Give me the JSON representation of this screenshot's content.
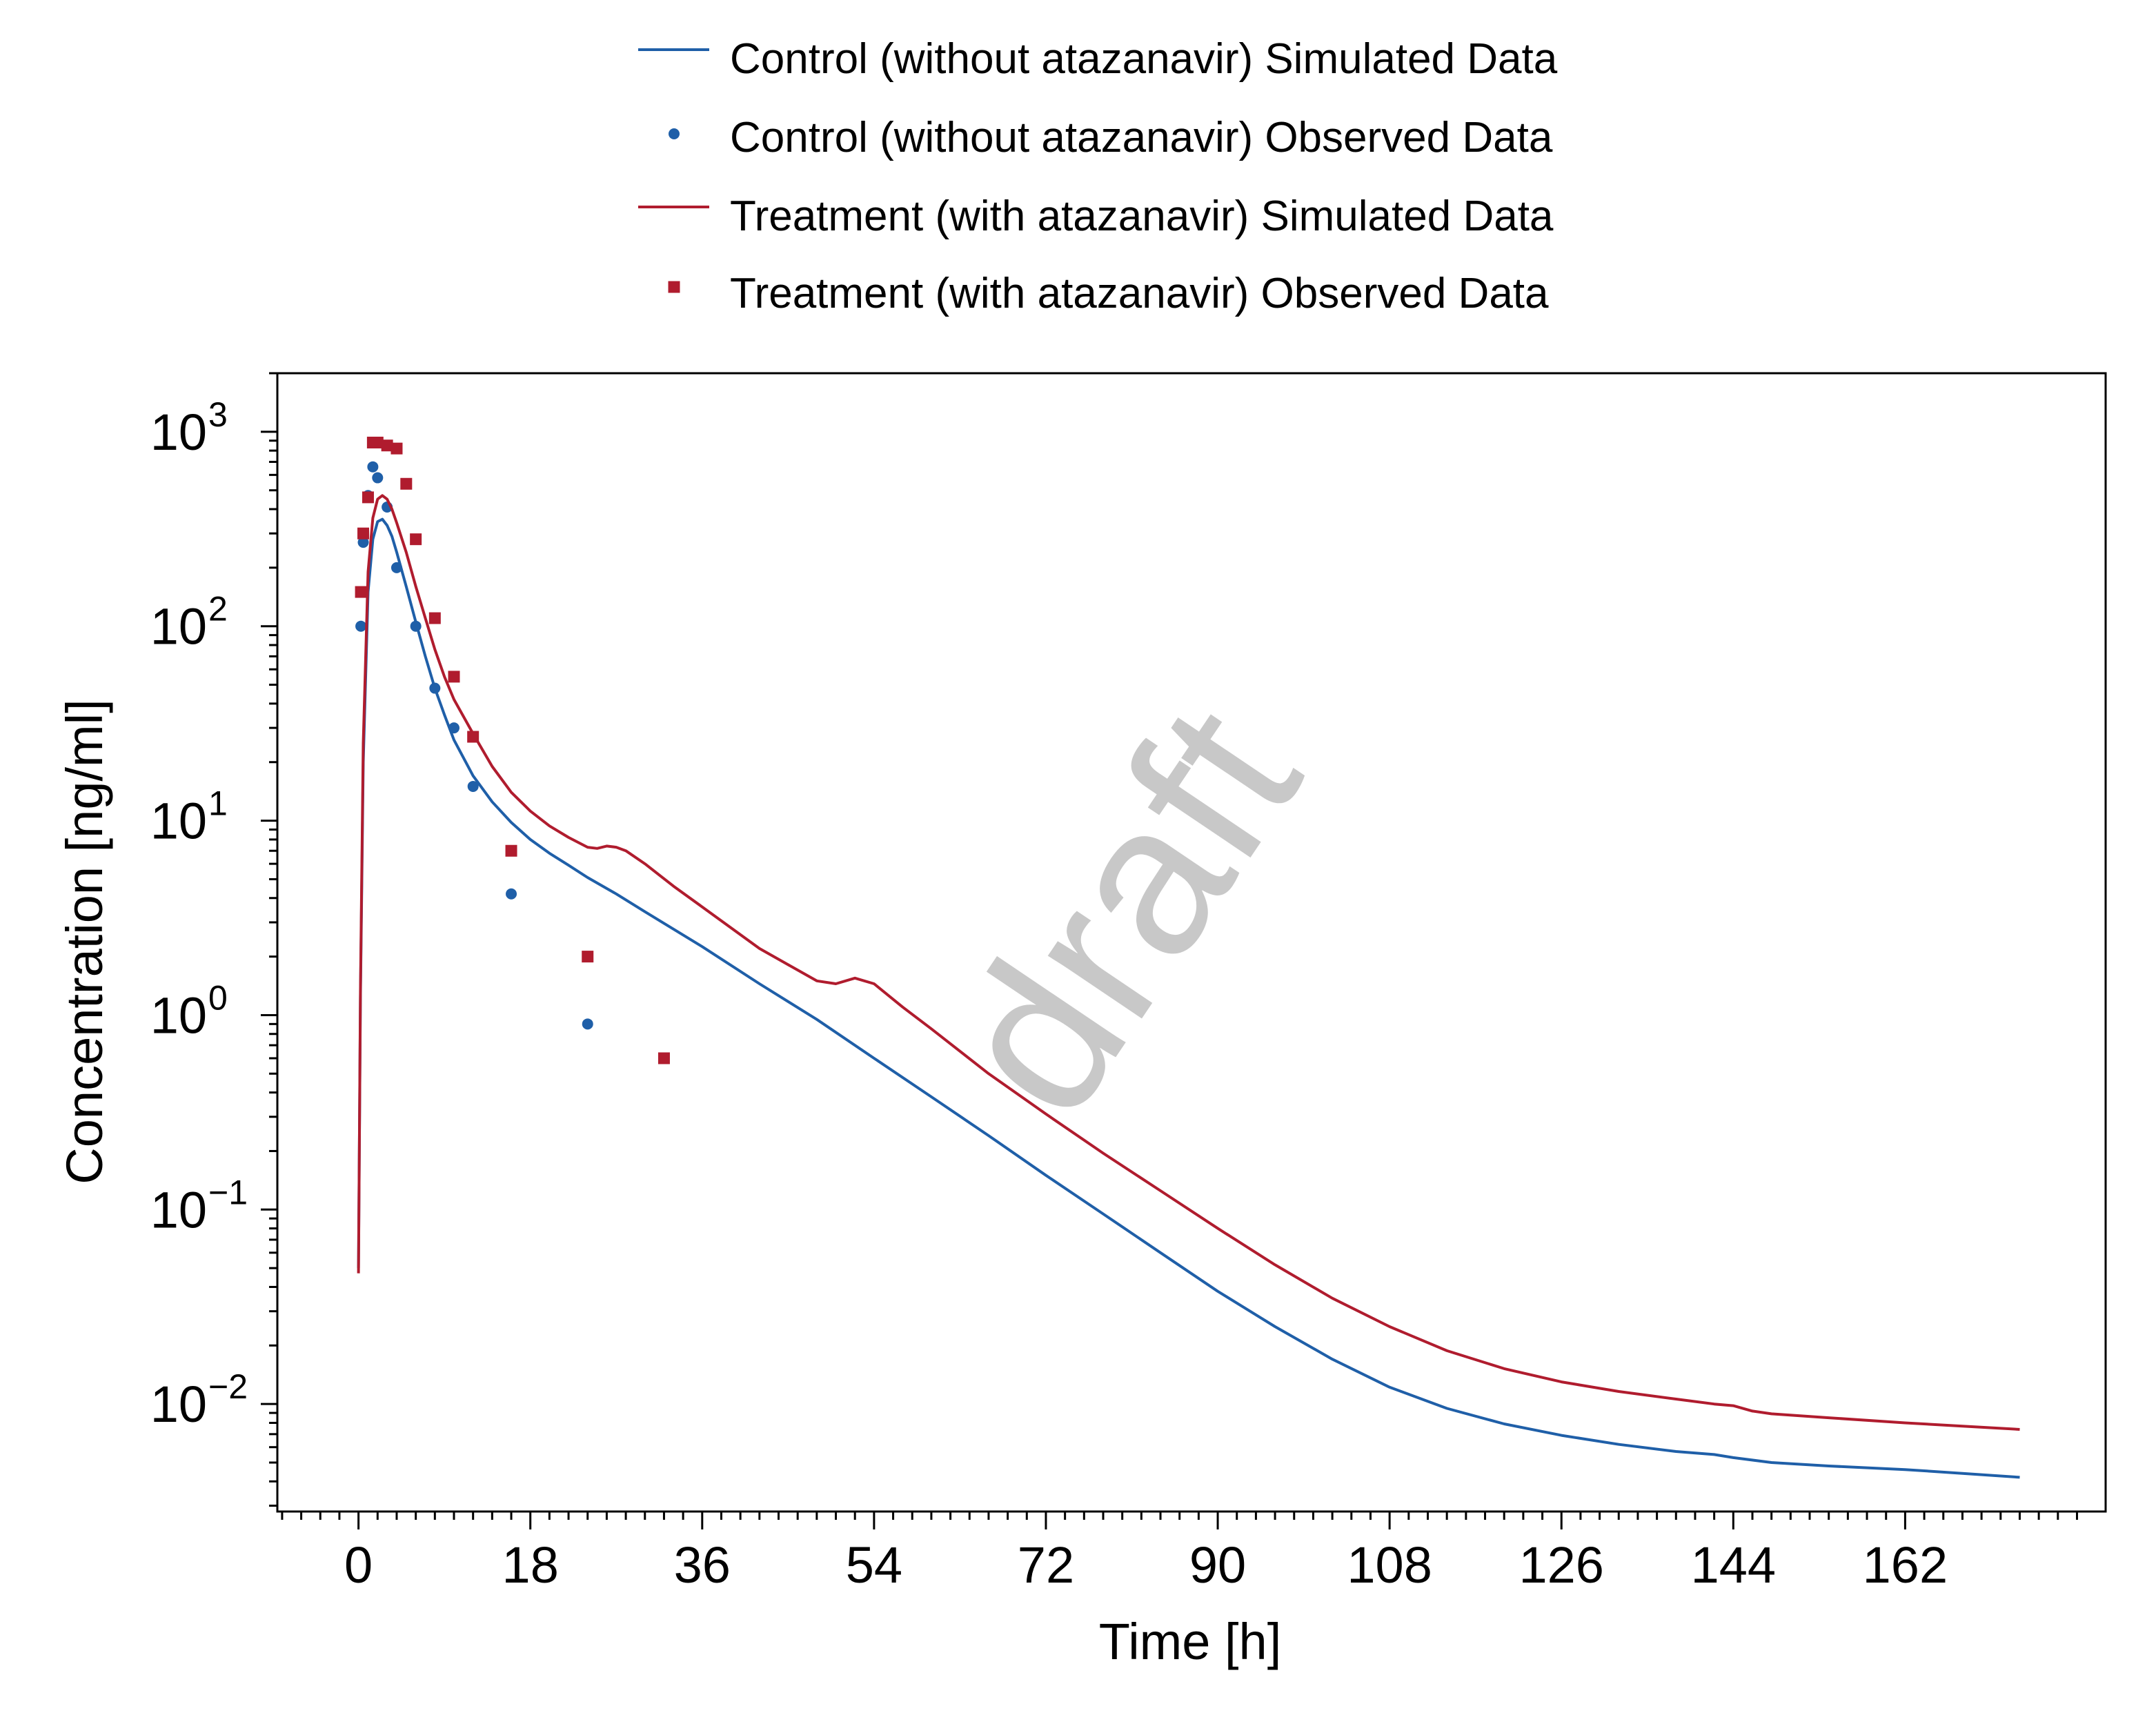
{
  "chart_data": {
    "type": "line",
    "xlabel": "Time [h]",
    "ylabel": "Concentration [ng/ml]",
    "xlim": [
      -8.5,
      183
    ],
    "ylim": [
      0.0028,
      2000
    ],
    "yscale": "log",
    "x_ticks": [
      0,
      18,
      36,
      54,
      72,
      90,
      108,
      126,
      144,
      162
    ],
    "y_ticks": [
      {
        "value": 1000,
        "base": "10",
        "exp": "3"
      },
      {
        "value": 100,
        "base": "10",
        "exp": "2"
      },
      {
        "value": 10,
        "base": "10",
        "exp": "1"
      },
      {
        "value": 1,
        "base": "10",
        "exp": "0"
      },
      {
        "value": 0.1,
        "base": "10",
        "exp": "−1"
      },
      {
        "value": 0.01,
        "base": "10",
        "exp": "−2"
      }
    ],
    "grid": false,
    "legend_position": "top",
    "watermark": "draft",
    "colors": {
      "control": "#1f5fa8",
      "treatment": "#b01c2e",
      "watermark": "#c8c8c8"
    },
    "series": [
      {
        "name": "Control (without atazanavir) Simulated Data",
        "kind": "line",
        "color": "#1f5fa8",
        "x": [
          0,
          0.2,
          0.5,
          1,
          1.5,
          2,
          2.5,
          3,
          3.5,
          4,
          5,
          6,
          7,
          8,
          9,
          10,
          12,
          14,
          16,
          18,
          20,
          22,
          24,
          27,
          30,
          36,
          42,
          48,
          54,
          60,
          66,
          72,
          78,
          84,
          90,
          96,
          102,
          108,
          114,
          120,
          126,
          132,
          138,
          142,
          144,
          148,
          154,
          162,
          168,
          174
        ],
        "y": [
          0.05,
          1.2,
          20,
          150,
          280,
          345,
          355,
          330,
          290,
          240,
          160,
          105,
          70,
          48,
          35,
          26,
          17,
          12.5,
          9.8,
          8.0,
          6.8,
          5.9,
          5.1,
          4.2,
          3.4,
          2.25,
          1.45,
          0.95,
          0.6,
          0.38,
          0.24,
          0.15,
          0.095,
          0.06,
          0.038,
          0.025,
          0.017,
          0.0122,
          0.0095,
          0.0079,
          0.0069,
          0.0062,
          0.0057,
          0.0055,
          0.0053,
          0.005,
          0.0048,
          0.0046,
          0.0044,
          0.0042
        ]
      },
      {
        "name": "Control (without atazanavir) Observed Data",
        "kind": "scatter",
        "marker": "circle",
        "color": "#1f5fa8",
        "x": [
          0.25,
          0.5,
          1,
          1.5,
          2,
          3,
          4,
          6,
          8,
          10,
          12,
          16,
          24
        ],
        "y": [
          100,
          270,
          470,
          660,
          580,
          410,
          200,
          100,
          48,
          30,
          15,
          4.2,
          0.9
        ]
      },
      {
        "name": "Treatment (with atazanavir) Simulated Data",
        "kind": "line",
        "color": "#b01c2e",
        "x": [
          0,
          0.2,
          0.5,
          1,
          1.5,
          2,
          2.5,
          3,
          3.5,
          4,
          5,
          6,
          7,
          8,
          9,
          10,
          12,
          14,
          16,
          18,
          20,
          22,
          24,
          25,
          26,
          27,
          28,
          30,
          33,
          36,
          42,
          48,
          50,
          52,
          54,
          57,
          60,
          66,
          72,
          78,
          84,
          90,
          96,
          102,
          108,
          114,
          120,
          126,
          132,
          138,
          142,
          144,
          146,
          148,
          154,
          162,
          168,
          174
        ],
        "y": [
          0.047,
          1.3,
          25,
          190,
          360,
          450,
          470,
          450,
          400,
          340,
          240,
          160,
          110,
          76,
          55,
          42,
          28,
          19,
          14,
          11.2,
          9.4,
          8.2,
          7.3,
          7.2,
          7.4,
          7.3,
          7.0,
          6.0,
          4.6,
          3.6,
          2.2,
          1.5,
          1.45,
          1.55,
          1.45,
          1.1,
          0.85,
          0.5,
          0.31,
          0.195,
          0.125,
          0.08,
          0.052,
          0.035,
          0.025,
          0.0188,
          0.0152,
          0.013,
          0.0116,
          0.0106,
          0.01,
          0.0098,
          0.0092,
          0.0089,
          0.0085,
          0.008,
          0.0077,
          0.0074
        ]
      },
      {
        "name": "Treatment (with atazanavir) Observed Data",
        "kind": "scatter",
        "marker": "square",
        "color": "#b01c2e",
        "x": [
          0.25,
          0.5,
          1,
          1.5,
          2,
          3,
          4,
          5,
          6,
          8,
          10,
          12,
          16,
          24,
          32
        ],
        "y": [
          150,
          300,
          460,
          880,
          880,
          850,
          820,
          540,
          280,
          110,
          55,
          27,
          7,
          2.0,
          0.6
        ]
      }
    ]
  }
}
